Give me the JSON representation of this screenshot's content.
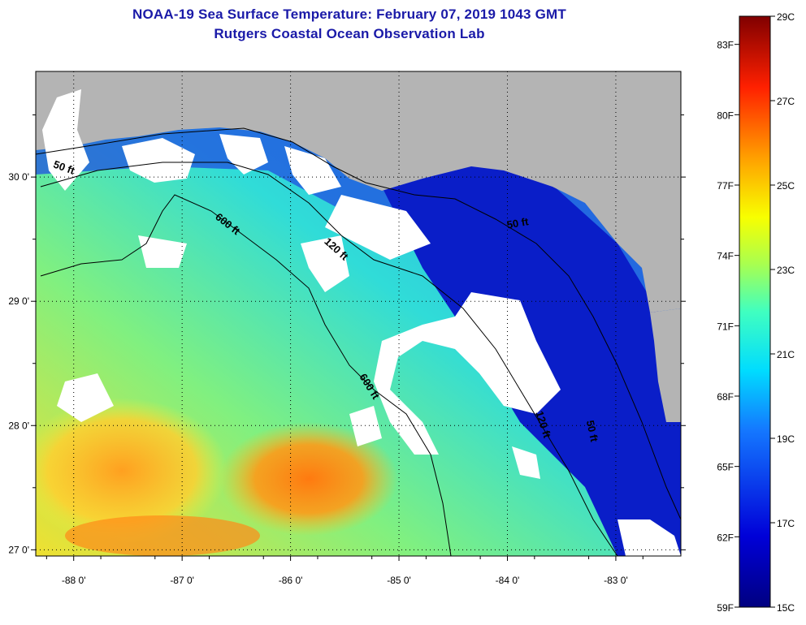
{
  "title": {
    "line1": "NOAA-19 Sea Surface Temperature:  February 07, 2019 1043 GMT",
    "line2": "Rutgers Coastal Ocean Observation Lab"
  },
  "map": {
    "lon_range": [
      -88.35,
      -82.4
    ],
    "lat_range": [
      26.95,
      30.85
    ],
    "x_ticks": [
      {
        "value": -88,
        "label": "-88 0'"
      },
      {
        "value": -87,
        "label": "-87 0'"
      },
      {
        "value": -86,
        "label": "-86 0'"
      },
      {
        "value": -85,
        "label": "-85 0'"
      },
      {
        "value": -84,
        "label": "-84 0'"
      },
      {
        "value": -83,
        "label": "-83 0'"
      }
    ],
    "y_ticks": [
      {
        "value": 30,
        "label": "30 0'"
      },
      {
        "value": 29,
        "label": "29 0'"
      },
      {
        "value": 28,
        "label": "28 0'"
      },
      {
        "value": 27,
        "label": "27 0'"
      }
    ],
    "contour_labels": [
      {
        "text": "50 ft",
        "lon": -88.1,
        "lat": 30.05,
        "rotate": 20
      },
      {
        "text": "600 ft",
        "lon": -86.6,
        "lat": 29.6,
        "rotate": 38
      },
      {
        "text": "120 ft",
        "lon": -85.6,
        "lat": 29.4,
        "rotate": 42
      },
      {
        "text": "50 ft",
        "lon": -83.9,
        "lat": 29.6,
        "rotate": -10
      },
      {
        "text": "600 ft",
        "lon": -85.3,
        "lat": 28.3,
        "rotate": 58
      },
      {
        "text": "120 ft",
        "lon": -83.7,
        "lat": 28.0,
        "rotate": 72
      },
      {
        "text": "50 ft",
        "lon": -83.25,
        "lat": 27.95,
        "rotate": 78
      }
    ]
  },
  "colorbar": {
    "min_c": 15,
    "max_c": 29,
    "celsius_labels": [
      "29C",
      "27C",
      "25C",
      "23C",
      "21C",
      "19C",
      "17C",
      "15C"
    ],
    "fahrenheit_labels": [
      "83F",
      "80F",
      "77F",
      "74F",
      "71F",
      "68F",
      "65F",
      "62F",
      "59F"
    ]
  },
  "colors": {
    "land": "#b4b4b4",
    "cloud": "#ffffff",
    "title": "#1a1aa8",
    "contour": "#000000"
  }
}
